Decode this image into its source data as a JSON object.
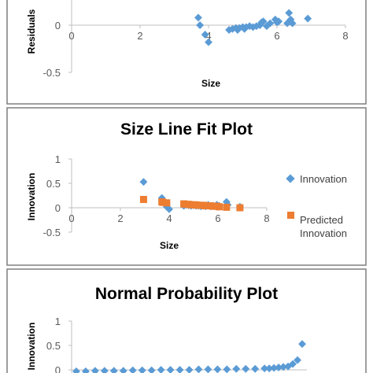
{
  "colors": {
    "series_blue": "#5B9BD5",
    "series_orange": "#ED7D31",
    "axis": "#BFBFBF",
    "frame": "#7F7F7F"
  },
  "chart_data": [
    {
      "type": "scatter",
      "title": "",
      "xlabel": "Size",
      "ylabel": "Residuals",
      "xlim": [
        0,
        8
      ],
      "ylim": [
        -0.5,
        1
      ],
      "xticks": [
        "0",
        "2",
        "4",
        "6",
        "8"
      ],
      "yticks": [
        "0",
        "-0.5"
      ],
      "series": [
        {
          "x": [
            2.95,
            3.7,
            3.75,
            3.9,
            4.0,
            4.6,
            4.7,
            4.8,
            4.85,
            4.9,
            5.0,
            5.05,
            5.1,
            5.2,
            5.3,
            5.4,
            5.5,
            5.55,
            5.6,
            5.7,
            5.8,
            5.95,
            6.0,
            6.05,
            6.3,
            6.35,
            6.4,
            6.45,
            6.9
          ],
          "y": [
            0.37,
            0.08,
            0.0,
            -0.1,
            -0.18,
            -0.05,
            -0.04,
            -0.03,
            -0.05,
            -0.03,
            -0.02,
            -0.04,
            -0.02,
            -0.01,
            -0.02,
            -0.01,
            0.0,
            0.03,
            0.04,
            -0.01,
            0.02,
            0.06,
            0.03,
            0.04,
            0.02,
            0.13,
            0.06,
            0.02,
            0.07
          ]
        }
      ]
    },
    {
      "type": "scatter",
      "title": "Size Line Fit  Plot",
      "xlabel": "Size",
      "ylabel": "Innovation",
      "xlim": [
        0,
        8
      ],
      "ylim": [
        -0.5,
        1
      ],
      "xticks": [
        "0",
        "2",
        "4",
        "6",
        "8"
      ],
      "yticks": [
        "1",
        "0.5",
        "0",
        "-0.5"
      ],
      "legend_position": "right",
      "series": [
        {
          "name": "Innovation",
          "marker": "diamond",
          "x": [
            2.95,
            3.7,
            3.75,
            3.9,
            4.0,
            4.6,
            4.7,
            4.8,
            4.9,
            5.0,
            5.1,
            5.2,
            5.3,
            5.4,
            5.5,
            5.6,
            5.7,
            5.8,
            5.95,
            6.05,
            6.35,
            6.4,
            6.9
          ],
          "y": [
            0.53,
            0.2,
            0.14,
            0.02,
            -0.03,
            0.04,
            0.06,
            0.05,
            0.04,
            0.05,
            0.04,
            0.04,
            0.03,
            0.04,
            0.03,
            0.06,
            0.03,
            0.04,
            0.06,
            0.04,
            0.12,
            0.06,
            0.02
          ]
        },
        {
          "name": "Predicted\nInnovation",
          "marker": "square",
          "x": [
            2.95,
            3.7,
            3.75,
            3.9,
            4.6,
            4.7,
            4.8,
            4.9,
            5.0,
            5.1,
            5.2,
            5.3,
            5.4,
            5.5,
            5.6,
            5.7,
            5.8,
            5.95,
            6.05,
            6.35,
            6.9
          ],
          "y": [
            0.17,
            0.12,
            0.11,
            0.1,
            0.08,
            0.07,
            0.07,
            0.06,
            0.06,
            0.06,
            0.05,
            0.05,
            0.05,
            0.04,
            0.04,
            0.04,
            0.03,
            0.03,
            0.02,
            0.01,
            0.0
          ]
        }
      ],
      "legend": [
        "Innovation",
        "Predicted",
        "Innovation"
      ]
    },
    {
      "type": "scatter",
      "title": "Normal Probability Plot",
      "xlabel": "",
      "ylabel": "Innovation",
      "xlim": [
        0,
        100
      ],
      "ylim": [
        -0.5,
        1
      ],
      "xticks": [],
      "yticks": [
        "1",
        "0.5",
        "0"
      ],
      "series": [
        {
          "x": [
            2,
            6,
            10,
            14,
            18,
            22,
            26,
            30,
            34,
            38,
            42,
            46,
            50,
            54,
            58,
            62,
            66,
            70,
            74,
            78,
            82,
            84,
            86,
            88,
            90,
            92,
            94,
            96,
            98
          ],
          "y": [
            -0.03,
            -0.03,
            -0.02,
            -0.02,
            -0.02,
            -0.02,
            -0.01,
            -0.01,
            -0.01,
            0.0,
            0.0,
            0.0,
            0.0,
            0.01,
            0.01,
            0.01,
            0.01,
            0.02,
            0.02,
            0.02,
            0.03,
            0.03,
            0.04,
            0.05,
            0.06,
            0.07,
            0.12,
            0.2,
            0.53
          ]
        }
      ]
    }
  ]
}
